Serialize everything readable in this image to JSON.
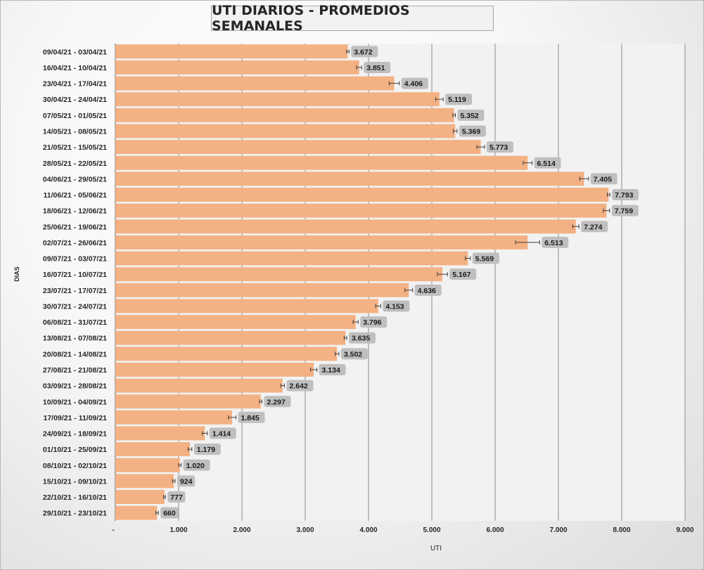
{
  "colors": {
    "bar": "#f4b183",
    "label_bg": "#bfbfbf",
    "grid": "#8c8c8c",
    "plot_bg": "#f2f2f2"
  },
  "chart_data": {
    "type": "bar",
    "orientation": "horizontal",
    "title": "UTI DIARIOS - PROMEDIOS SEMANALES",
    "xlabel": "UTI",
    "ylabel": "DIAS",
    "xlim": [
      0,
      9000
    ],
    "xticks": [
      0,
      1000,
      2000,
      3000,
      4000,
      5000,
      6000,
      7000,
      8000,
      9000
    ],
    "xtick_labels": [
      "-",
      "1.000",
      "2.000",
      "3.000",
      "4.000",
      "5.000",
      "6.000",
      "7.000",
      "8.000",
      "9.000"
    ],
    "grid": "vertical major gridlines",
    "error_bars": true,
    "categories": [
      "09/04/21 - 03/04/21",
      "16/04/21 - 10/04/21",
      "23/04/21 - 17/04/21",
      "30/04/21 - 24/04/21",
      "07/05/21 - 01/05/21",
      "14/05/21 - 08/05/21",
      "21/05/21 - 15/05/21",
      "28/05/21 - 22/05/21",
      "04/06/21 - 29/05/21",
      "11/06/21 - 05/06/21",
      "18/06/21 - 12/06/21",
      "25/06/21 - 19/06/21",
      "02/07/21 - 26/06/21",
      "09/07/21 - 03/07/21",
      "16/07/21 - 10/07/21",
      "23/07/21 - 17/07/21",
      "30/07/21 - 24/07/21",
      "06/08/21 - 31/07/21",
      "13/08/21 - 07/08/21",
      "20/08/21 - 14/08/21",
      "27/08/21 - 21/08/21",
      "03/09/21 - 28/08/21",
      "10/09/21 - 04/09/21",
      "17/09/21 - 11/09/21",
      "24/09/21 - 18/09/21",
      "01/10/21 - 25/09/21",
      "08/10/21 - 02/10/21",
      "15/10/21 - 09/10/21",
      "22/10/21 - 16/10/21",
      "29/10/21 - 23/10/21"
    ],
    "values": [
      3672,
      3851,
      4406,
      5119,
      5352,
      5369,
      5773,
      6514,
      7405,
      7793,
      7759,
      7274,
      6513,
      5569,
      5167,
      4636,
      4153,
      3796,
      3635,
      3502,
      3134,
      2642,
      2297,
      1845,
      1414,
      1179,
      1020,
      924,
      777,
      660
    ],
    "value_labels": [
      "3.672",
      "3.851",
      "4.406",
      "5.119",
      "5.352",
      "5.369",
      "5.773",
      "6.514",
      "7.405",
      "7.793",
      "7.759",
      "7.274",
      "6.513",
      "5.569",
      "5.167",
      "4.636",
      "4.153",
      "3.796",
      "3.635",
      "3.502",
      "3.134",
      "2.642",
      "2.297",
      "1.845",
      "1.414",
      "1.179",
      "1.020",
      "924",
      "777",
      "660"
    ],
    "errors": [
      20,
      40,
      80,
      60,
      20,
      30,
      60,
      70,
      70,
      20,
      50,
      50,
      190,
      40,
      80,
      60,
      40,
      40,
      20,
      30,
      50,
      30,
      20,
      60,
      40,
      30,
      20,
      20,
      15,
      20
    ]
  }
}
